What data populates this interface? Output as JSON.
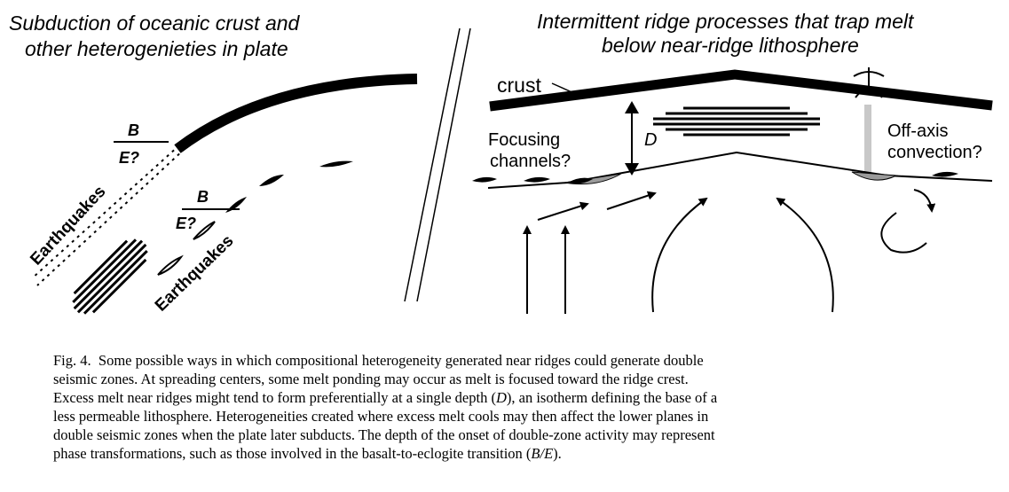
{
  "left_panel": {
    "title_line1": "Subduction of oceanic crust and",
    "title_line2": "other heterogenieties in plate",
    "label_b_upper": "B",
    "label_e_upper": "E?",
    "label_b_lower": "B",
    "label_e_lower": "E?",
    "earthquakes_upper": "Earthquakes",
    "earthquakes_lower": "Earthquakes"
  },
  "right_panel": {
    "title_line1": "Intermittent ridge processes that trap melt",
    "title_line2": "below near-ridge lithosphere",
    "crust_label": "crust",
    "depth_label": "D",
    "focusing_line1": "Focusing",
    "focusing_line2": "channels?",
    "offaxis_line1": "Off-axis",
    "offaxis_line2": "convection?"
  },
  "caption": {
    "figure_number": "Fig. 4.",
    "line1": "Some possible ways in which compositional heterogeneity generated near ridges could generate double",
    "line2": "seismic zones. At spreading centers, some melt ponding may occur as melt is focused toward the ridge crest.",
    "line3_a": "Excess melt near ridges might tend to form preferentially at a single depth (",
    "line3_d": "D",
    "line3_b": "), an isotherm defining the base of a",
    "line4": "less permeable lithosphere.  Heterogeneities created where excess melt cools may then affect the lower planes in",
    "line5": "double seismic zones when the plate later subducts.  The depth of the onset of double-zone activity may represent",
    "line6_a": "phase transformations, such as those involved in the basalt-to-eclogite transition (",
    "line6_be": "B/E",
    "line6_b": ")."
  }
}
